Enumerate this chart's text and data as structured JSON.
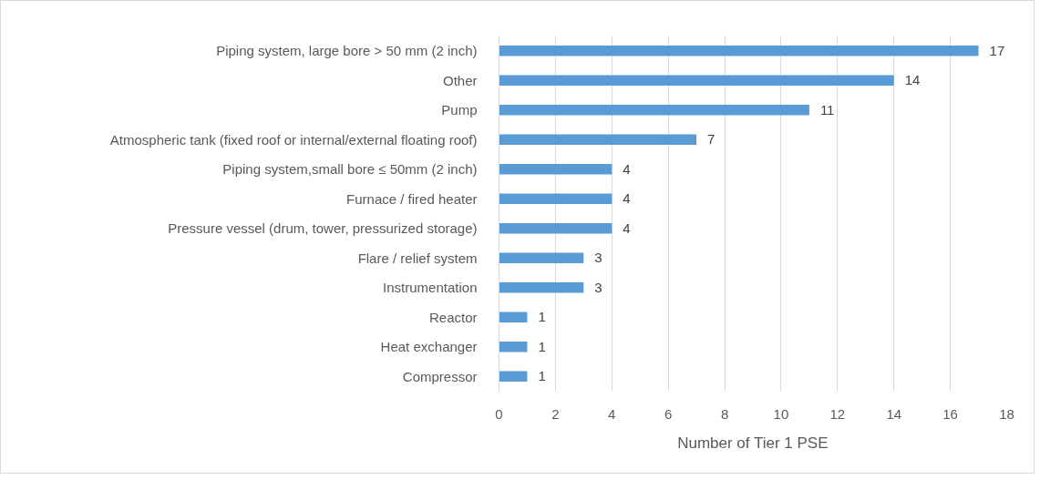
{
  "chart_data": {
    "type": "bar",
    "orientation": "horizontal",
    "xlabel": "Number of Tier 1 PSE",
    "categories": [
      "Piping system, large bore > 50 mm (2 inch)",
      "Other",
      "Pump",
      "Atmospheric tank (fixed roof or internal/external floating roof)",
      "Piping system,small bore ≤ 50mm (2 inch)",
      "Furnace / fired heater",
      "Pressure vessel (drum, tower, pressurized storage)",
      "Flare / relief system",
      "Instrumentation",
      "Reactor",
      "Heat exchanger",
      "Compressor"
    ],
    "values": [
      17,
      14,
      11,
      7,
      4,
      4,
      4,
      3,
      3,
      1,
      1,
      1
    ],
    "color": "#5b9bd5",
    "xlim": [
      0,
      18
    ],
    "xticks": [
      0,
      2,
      4,
      6,
      8,
      10,
      12,
      14,
      16,
      18
    ],
    "grid": "x",
    "data_labels": true
  }
}
